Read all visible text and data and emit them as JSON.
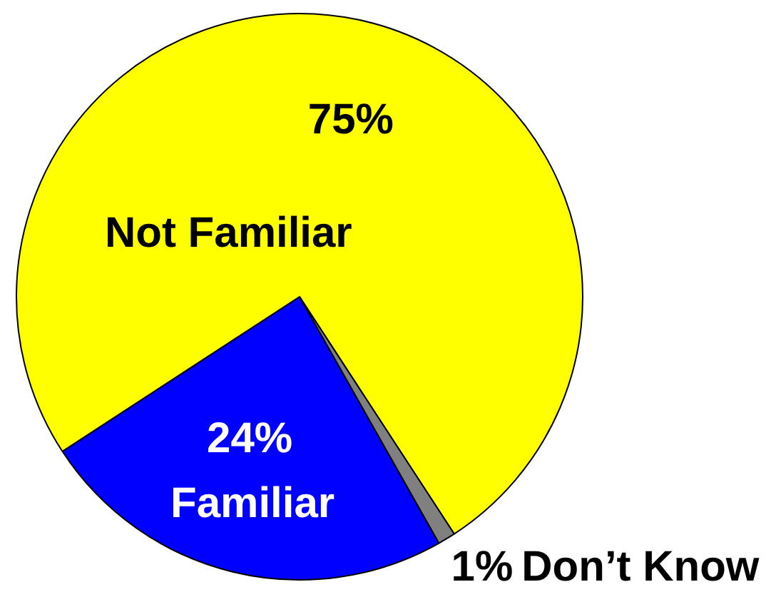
{
  "chart_data": {
    "type": "pie",
    "categories": [
      "Familiar",
      "Not Familiar",
      "Don’t Know"
    ],
    "values": [
      24,
      75,
      1
    ],
    "colors": [
      "#0000ff",
      "#ffff00",
      "#808080"
    ],
    "value_labels": [
      "24%",
      "75%",
      "1%"
    ]
  }
}
